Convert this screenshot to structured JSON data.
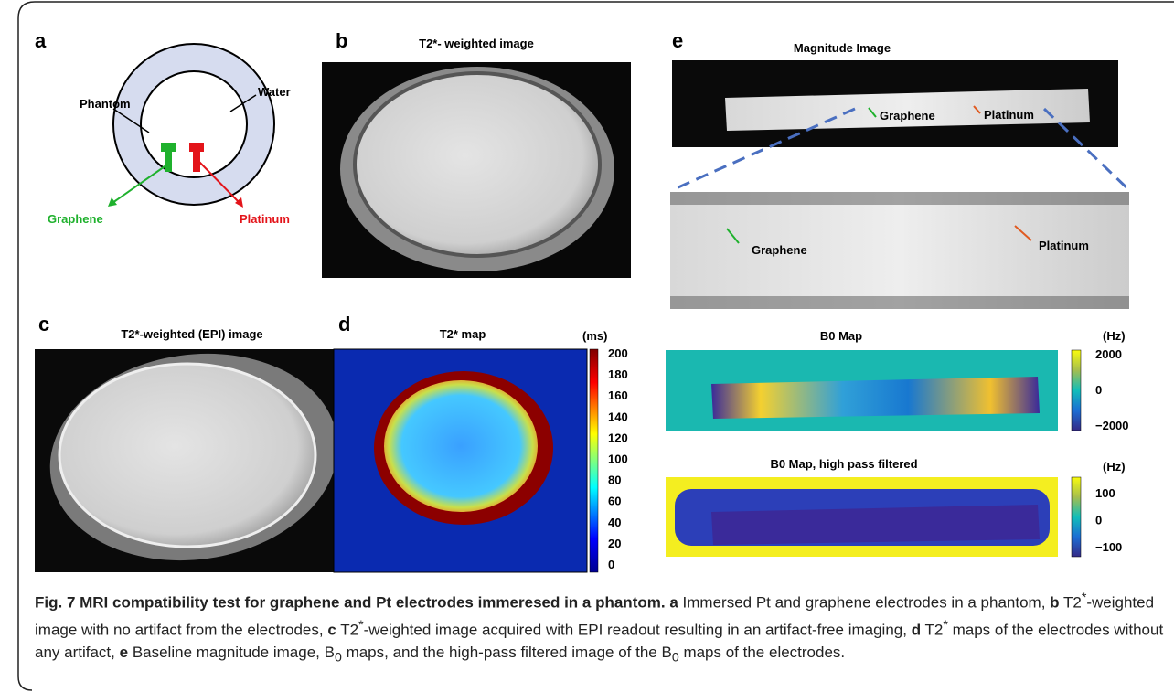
{
  "panels": {
    "a": {
      "label": "a",
      "phantom": "Phantom",
      "water": "Water",
      "graphene": "Graphene",
      "platinum": "Platinum"
    },
    "b": {
      "label": "b",
      "title": "T2*- weighted image"
    },
    "c": {
      "label": "c",
      "title": "T2*-weighted (EPI) image"
    },
    "d": {
      "label": "d",
      "title": "T2* map",
      "unit": "(ms)",
      "colorbar_ticks": [
        "200",
        "180",
        "160",
        "140",
        "120",
        "100",
        "80",
        "60",
        "40",
        "20",
        "0"
      ]
    },
    "e": {
      "label": "e",
      "magnitude_title": "Magnitude Image",
      "magnitude_labels": [
        "Graphene",
        "Platinum"
      ],
      "zoom_labels": [
        "Graphene",
        "Platinum"
      ],
      "b0_title": "B0 Map",
      "b0_unit": "(Hz)",
      "b0_ticks": [
        "2000",
        "0",
        "−2000"
      ],
      "hp_title": "B0 Map, high pass filtered",
      "hp_unit": "(Hz)",
      "hp_ticks": [
        "100",
        "0",
        "−100"
      ]
    }
  },
  "caption": {
    "runs": [
      "Fig. 7 MRI compatibility test for graphene and Pt electrodes immeresed in a phantom.",
      "a",
      "Immersed Pt and graphene electrodes in a phantom,",
      "b",
      "T2",
      "*",
      "-weighted image with no artifact from the electrodes,",
      "c",
      "T2",
      "*",
      "-weighted image acquired with EPI readout resulting in an artifact-free imaging,",
      "d",
      "T2",
      "*",
      "maps of the electrodes without any artifact,",
      "e",
      "Baseline magnitude image, B",
      "0",
      "maps, and the high-pass filtered image of the B",
      "0",
      "maps of the electrodes."
    ]
  }
}
